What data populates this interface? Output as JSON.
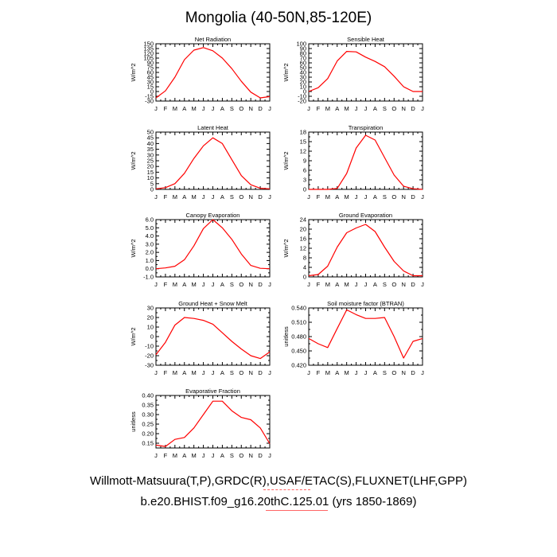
{
  "page": {
    "title": "Mongolia (40-50N,85-120E)",
    "footer_line1": "Willmott-Matsuura(T,P),GRDC(R),USAF/ETAC(S),FLUXNET(LHF,GPP)",
    "footer_line2": "b.e20.BHIST.f09_g16.20thC.125.01 (yrs 1850-1869)",
    "line_color": "#ff0000",
    "axis_color": "#000000"
  },
  "chart_data": [
    {
      "type": "line",
      "title": "Net Radiation",
      "ylabel": "W/m^2",
      "categories": [
        "J",
        "F",
        "M",
        "A",
        "M",
        "J",
        "J",
        "A",
        "S",
        "O",
        "N",
        "D",
        "J"
      ],
      "ylim": [
        -30,
        150
      ],
      "yticks": [
        -30,
        -15,
        0,
        15,
        30,
        45,
        60,
        75,
        90,
        105,
        120,
        135,
        150
      ],
      "ytick_labels": [
        "-30",
        "-15",
        "0",
        "15",
        "30",
        "45",
        "60",
        "75",
        "90",
        "105",
        "120",
        "135",
        "150"
      ],
      "values": [
        -20,
        2,
        45,
        100,
        130,
        138,
        128,
        105,
        72,
        32,
        -2,
        -20,
        -16
      ]
    },
    {
      "type": "line",
      "title": "Sensible Heat",
      "ylabel": "W/m^2",
      "categories": [
        "J",
        "F",
        "M",
        "A",
        "M",
        "J",
        "J",
        "A",
        "S",
        "O",
        "N",
        "D",
        "J"
      ],
      "ylim": [
        -20,
        100
      ],
      "yticks": [
        -20,
        -10,
        0,
        10,
        20,
        30,
        40,
        50,
        60,
        70,
        80,
        90,
        100
      ],
      "ytick_labels": [
        "-20",
        "-10",
        "0",
        "10",
        "20",
        "30",
        "40",
        "50",
        "60",
        "70",
        "80",
        "90",
        "100"
      ],
      "values": [
        0,
        8,
        27,
        64,
        84,
        83,
        72,
        63,
        52,
        32,
        10,
        0,
        0
      ]
    },
    {
      "type": "line",
      "title": "Latent Heat",
      "ylabel": "W/m^2",
      "categories": [
        "J",
        "F",
        "M",
        "A",
        "M",
        "J",
        "J",
        "A",
        "S",
        "O",
        "N",
        "D",
        "J"
      ],
      "ylim": [
        0,
        50
      ],
      "yticks": [
        0,
        5,
        10,
        15,
        20,
        25,
        30,
        35,
        40,
        45,
        50
      ],
      "ytick_labels": [
        "0",
        "5",
        "10",
        "15",
        "20",
        "25",
        "30",
        "35",
        "40",
        "45",
        "50"
      ],
      "values": [
        0.5,
        1.5,
        5,
        14,
        27,
        38,
        45,
        40,
        26,
        12,
        4,
        1,
        0.5
      ]
    },
    {
      "type": "line",
      "title": "Transpiration",
      "ylabel": "W/m^2",
      "categories": [
        "J",
        "F",
        "M",
        "A",
        "M",
        "J",
        "J",
        "A",
        "S",
        "O",
        "N",
        "D",
        "J"
      ],
      "ylim": [
        0,
        18
      ],
      "yticks": [
        0,
        1.5,
        3,
        4.5,
        6,
        7.5,
        9,
        10.5,
        12,
        13.5,
        15,
        16.5,
        18
      ],
      "ytick_labels": [
        "0",
        "",
        "3",
        "",
        "6",
        "",
        "9",
        "",
        "12",
        "",
        "15",
        "",
        "18"
      ],
      "values": [
        0,
        0,
        0,
        0.3,
        5,
        13,
        17,
        15.5,
        10,
        4.5,
        1,
        0.2,
        0
      ]
    },
    {
      "type": "line",
      "title": "Canopy Evaporation",
      "ylabel": "W/m^2",
      "categories": [
        "J",
        "F",
        "M",
        "A",
        "M",
        "J",
        "J",
        "A",
        "S",
        "O",
        "N",
        "D",
        "J"
      ],
      "ylim": [
        -1.0,
        6.0
      ],
      "yticks": [
        -1.0,
        -0.5,
        0.0,
        0.5,
        1.0,
        1.5,
        2.0,
        2.5,
        3.0,
        3.5,
        4.0,
        4.5,
        5.0,
        5.5,
        6.0
      ],
      "ytick_labels": [
        "-1.0",
        "",
        "0.0",
        "",
        "1.0",
        "",
        "2.0",
        "",
        "3.0",
        "",
        "4.0",
        "",
        "5.0",
        "",
        "6.0"
      ],
      "values": [
        0,
        0.1,
        0.3,
        1.1,
        2.8,
        4.9,
        6.0,
        5.0,
        3.6,
        1.8,
        0.4,
        0.05,
        0
      ]
    },
    {
      "type": "line",
      "title": "Ground Evaporation",
      "ylabel": "W/m^2",
      "categories": [
        "J",
        "F",
        "M",
        "A",
        "M",
        "J",
        "J",
        "A",
        "S",
        "O",
        "N",
        "D",
        "J"
      ],
      "ylim": [
        0,
        24
      ],
      "yticks": [
        0,
        2,
        4,
        6,
        8,
        10,
        12,
        14,
        16,
        18,
        20,
        22,
        24
      ],
      "ytick_labels": [
        "0",
        "",
        "4",
        "",
        "8",
        "",
        "12",
        "",
        "16",
        "",
        "20",
        "",
        "24"
      ],
      "values": [
        0.5,
        1,
        4.5,
        12.5,
        18.5,
        20.5,
        22,
        19,
        12.5,
        6.5,
        2.5,
        0.5,
        0.5
      ]
    },
    {
      "type": "line",
      "title": "Ground Heat + Snow Melt",
      "ylabel": "W/m^2",
      "categories": [
        "J",
        "F",
        "M",
        "A",
        "M",
        "J",
        "J",
        "A",
        "S",
        "O",
        "N",
        "D",
        "J"
      ],
      "ylim": [
        -30,
        30
      ],
      "yticks": [
        -30,
        -25,
        -20,
        -15,
        -10,
        -5,
        0,
        5,
        10,
        15,
        20,
        25,
        30
      ],
      "ytick_labels": [
        "-30",
        "",
        "-20",
        "",
        "-10",
        "",
        "0",
        "",
        "10",
        "",
        "20",
        "",
        "30"
      ],
      "values": [
        -19,
        -6,
        12,
        20,
        19,
        17,
        13,
        4,
        -5,
        -13,
        -20,
        -23,
        -16
      ]
    },
    {
      "type": "line",
      "title": "Soil moisture factor (BTRAN)",
      "ylabel": "unitless",
      "categories": [
        "J",
        "F",
        "M",
        "A",
        "M",
        "J",
        "J",
        "A",
        "S",
        "O",
        "N",
        "D",
        "J"
      ],
      "ylim": [
        0.42,
        0.54
      ],
      "yticks": [
        0.42,
        0.435,
        0.45,
        0.465,
        0.48,
        0.495,
        0.51,
        0.525,
        0.54
      ],
      "ytick_labels": [
        "0.420",
        "",
        "0.450",
        "",
        "0.480",
        "",
        "0.510",
        "",
        "0.540"
      ],
      "values": [
        0.476,
        0.465,
        0.457,
        0.497,
        0.536,
        0.526,
        0.518,
        0.518,
        0.52,
        0.48,
        0.435,
        0.47,
        0.476
      ]
    },
    {
      "type": "line",
      "title": "Evaporative Fraction",
      "ylabel": "unitless",
      "categories": [
        "J",
        "F",
        "M",
        "A",
        "M",
        "J",
        "J",
        "A",
        "S",
        "O",
        "N",
        "D",
        "J"
      ],
      "ylim": [
        0.125,
        0.4
      ],
      "yticks": [
        0.15,
        0.2,
        0.25,
        0.3,
        0.35,
        0.4
      ],
      "ytick_labels": [
        "0.15",
        "0.20",
        "0.25",
        "0.30",
        "0.35",
        "0.40"
      ],
      "minor_step": 0.025,
      "values": [
        0.14,
        0.133,
        0.17,
        0.18,
        0.23,
        0.3,
        0.37,
        0.37,
        0.32,
        0.285,
        0.273,
        0.23,
        0.148
      ]
    }
  ]
}
